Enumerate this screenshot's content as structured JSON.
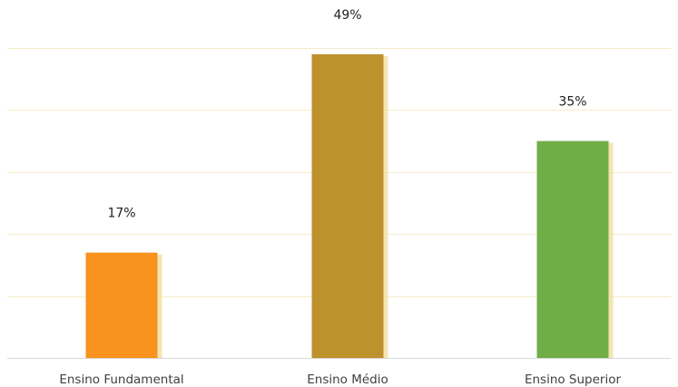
{
  "chart_data": {
    "type": "bar",
    "categories": [
      "Ensino Fundamental",
      "Ensino Médio",
      "Ensino Superior"
    ],
    "values": [
      17,
      49,
      35
    ],
    "value_labels": [
      "17%",
      "49%",
      "35%"
    ],
    "ylim": [
      0,
      50
    ],
    "grid": true,
    "colors": [
      "#f7931e",
      "#bd912c",
      "#70ad47"
    ],
    "shadow_color": "#f3dfa0",
    "gridline_color": "#f6ecc8",
    "baseline_color": "#d9d9d9"
  }
}
